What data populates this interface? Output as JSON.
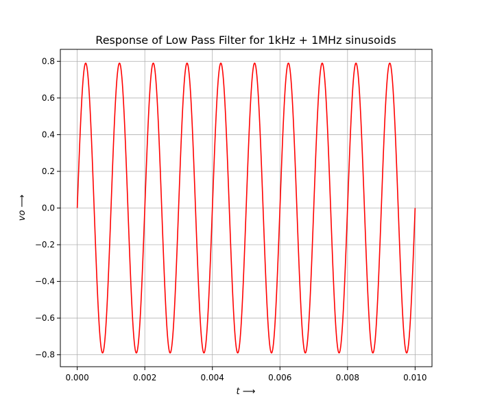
{
  "chart_data": {
    "type": "line",
    "title": "Response of Low Pass Filter for 1kHz + 1MHz sinusoids",
    "xlabel": "t ⟶",
    "xlabel_var": "t",
    "xlabel_arrow": " ⟶",
    "ylabel": "vo ⟶",
    "xlim": [
      -0.0005,
      0.0105
    ],
    "ylim": [
      -0.865,
      0.865
    ],
    "x_ticks": [
      0.0,
      0.002,
      0.004,
      0.006,
      0.008,
      0.01
    ],
    "x_tick_labels": [
      "0.000",
      "0.002",
      "0.004",
      "0.006",
      "0.008",
      "0.010"
    ],
    "y_ticks": [
      -0.8,
      -0.6,
      -0.4,
      -0.2,
      0.0,
      0.2,
      0.4,
      0.6,
      0.8
    ],
    "y_tick_labels": [
      "−0.8",
      "−0.6",
      "−0.4",
      "−0.2",
      "0.0",
      "0.2",
      "0.4",
      "0.6",
      "0.8"
    ],
    "grid": true,
    "series": [
      {
        "color": "#ff0000",
        "function": "amplitude * sin(2*pi*frequency*t)",
        "amplitude": 0.79,
        "frequency": 1000,
        "x_start": 0.0,
        "x_end": 0.01
      }
    ]
  }
}
